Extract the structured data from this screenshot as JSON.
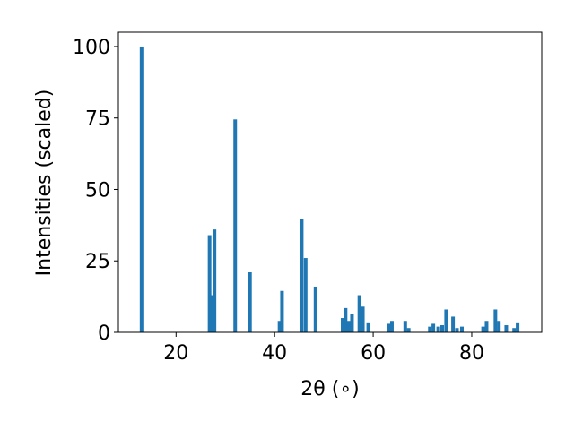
{
  "chart_data": {
    "type": "bar",
    "xlabel": "2θ (∘)",
    "ylabel": "Intensities (scaled)",
    "color": "#1f77b4",
    "x": [
      13,
      26.8,
      27.2,
      27.8,
      32,
      35,
      41,
      41.5,
      45.5,
      46.3,
      48.3,
      53.8,
      54.4,
      55,
      55.7,
      57.2,
      57.9,
      59,
      63.2,
      63.8,
      66.5,
      67.2,
      71.5,
      72.2,
      73.2,
      74,
      74.8,
      76.2,
      77,
      78,
      82.3,
      83,
      84.8,
      85.5,
      87,
      88.6,
      89.3
    ],
    "values": [
      100,
      34,
      13,
      36,
      74.5,
      21,
      4,
      14.5,
      39.5,
      26,
      16,
      5,
      8.5,
      4,
      6.5,
      13,
      9,
      3.5,
      3,
      4,
      4,
      1.5,
      2,
      3,
      2,
      2.5,
      8,
      5.5,
      1.5,
      2,
      2,
      4,
      8,
      4,
      2.5,
      1.5,
      3.5
    ],
    "xlim": [
      8.3,
      94.2
    ],
    "ylim": [
      0,
      105
    ],
    "xticks": [
      20,
      40,
      60,
      80
    ],
    "yticks": [
      0,
      25,
      50,
      75,
      100
    ]
  }
}
